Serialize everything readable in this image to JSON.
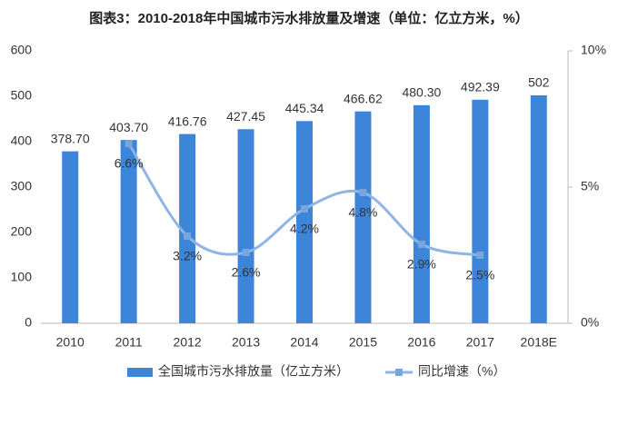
{
  "chart_data": {
    "type": "bar",
    "title": "图表3：2010-2018年中国城市污水排放量及增速（单位：亿立方米，%）",
    "categories": [
      "2010",
      "2011",
      "2012",
      "2013",
      "2014",
      "2015",
      "2016",
      "2017",
      "2018E"
    ],
    "series": [
      {
        "name": "全国城市污水排放量（亿立方米）",
        "type": "bar",
        "color": "#3d85d8",
        "values": [
          378.7,
          403.7,
          416.76,
          427.45,
          445.34,
          466.62,
          480.3,
          492.39,
          502
        ],
        "value_labels": [
          "378.70",
          "403.70",
          "416.76",
          "427.45",
          "445.34",
          "466.62",
          "480.30",
          "492.39",
          "502"
        ]
      },
      {
        "name": "同比增速（%）",
        "type": "line",
        "axis": "y2",
        "color": "#8fb5e4",
        "marker_color": "#7aa5dc",
        "values": [
          null,
          6.6,
          3.2,
          2.6,
          4.2,
          4.8,
          2.9,
          2.5,
          null
        ],
        "value_labels": [
          null,
          "6.6%",
          "3.2%",
          "2.6%",
          "4.2%",
          "4.8%",
          "2.9%",
          "2.5%",
          null
        ]
      }
    ],
    "ylim": [
      0,
      600
    ],
    "yticks": [
      0,
      100,
      200,
      300,
      400,
      500,
      600
    ],
    "y2lim": [
      0,
      10
    ],
    "y2ticks": [
      {
        "value": 0,
        "label": "0%"
      },
      {
        "value": 5,
        "label": "5%"
      },
      {
        "value": 10,
        "label": "10%"
      }
    ],
    "grid": false,
    "legend": "bottom"
  }
}
